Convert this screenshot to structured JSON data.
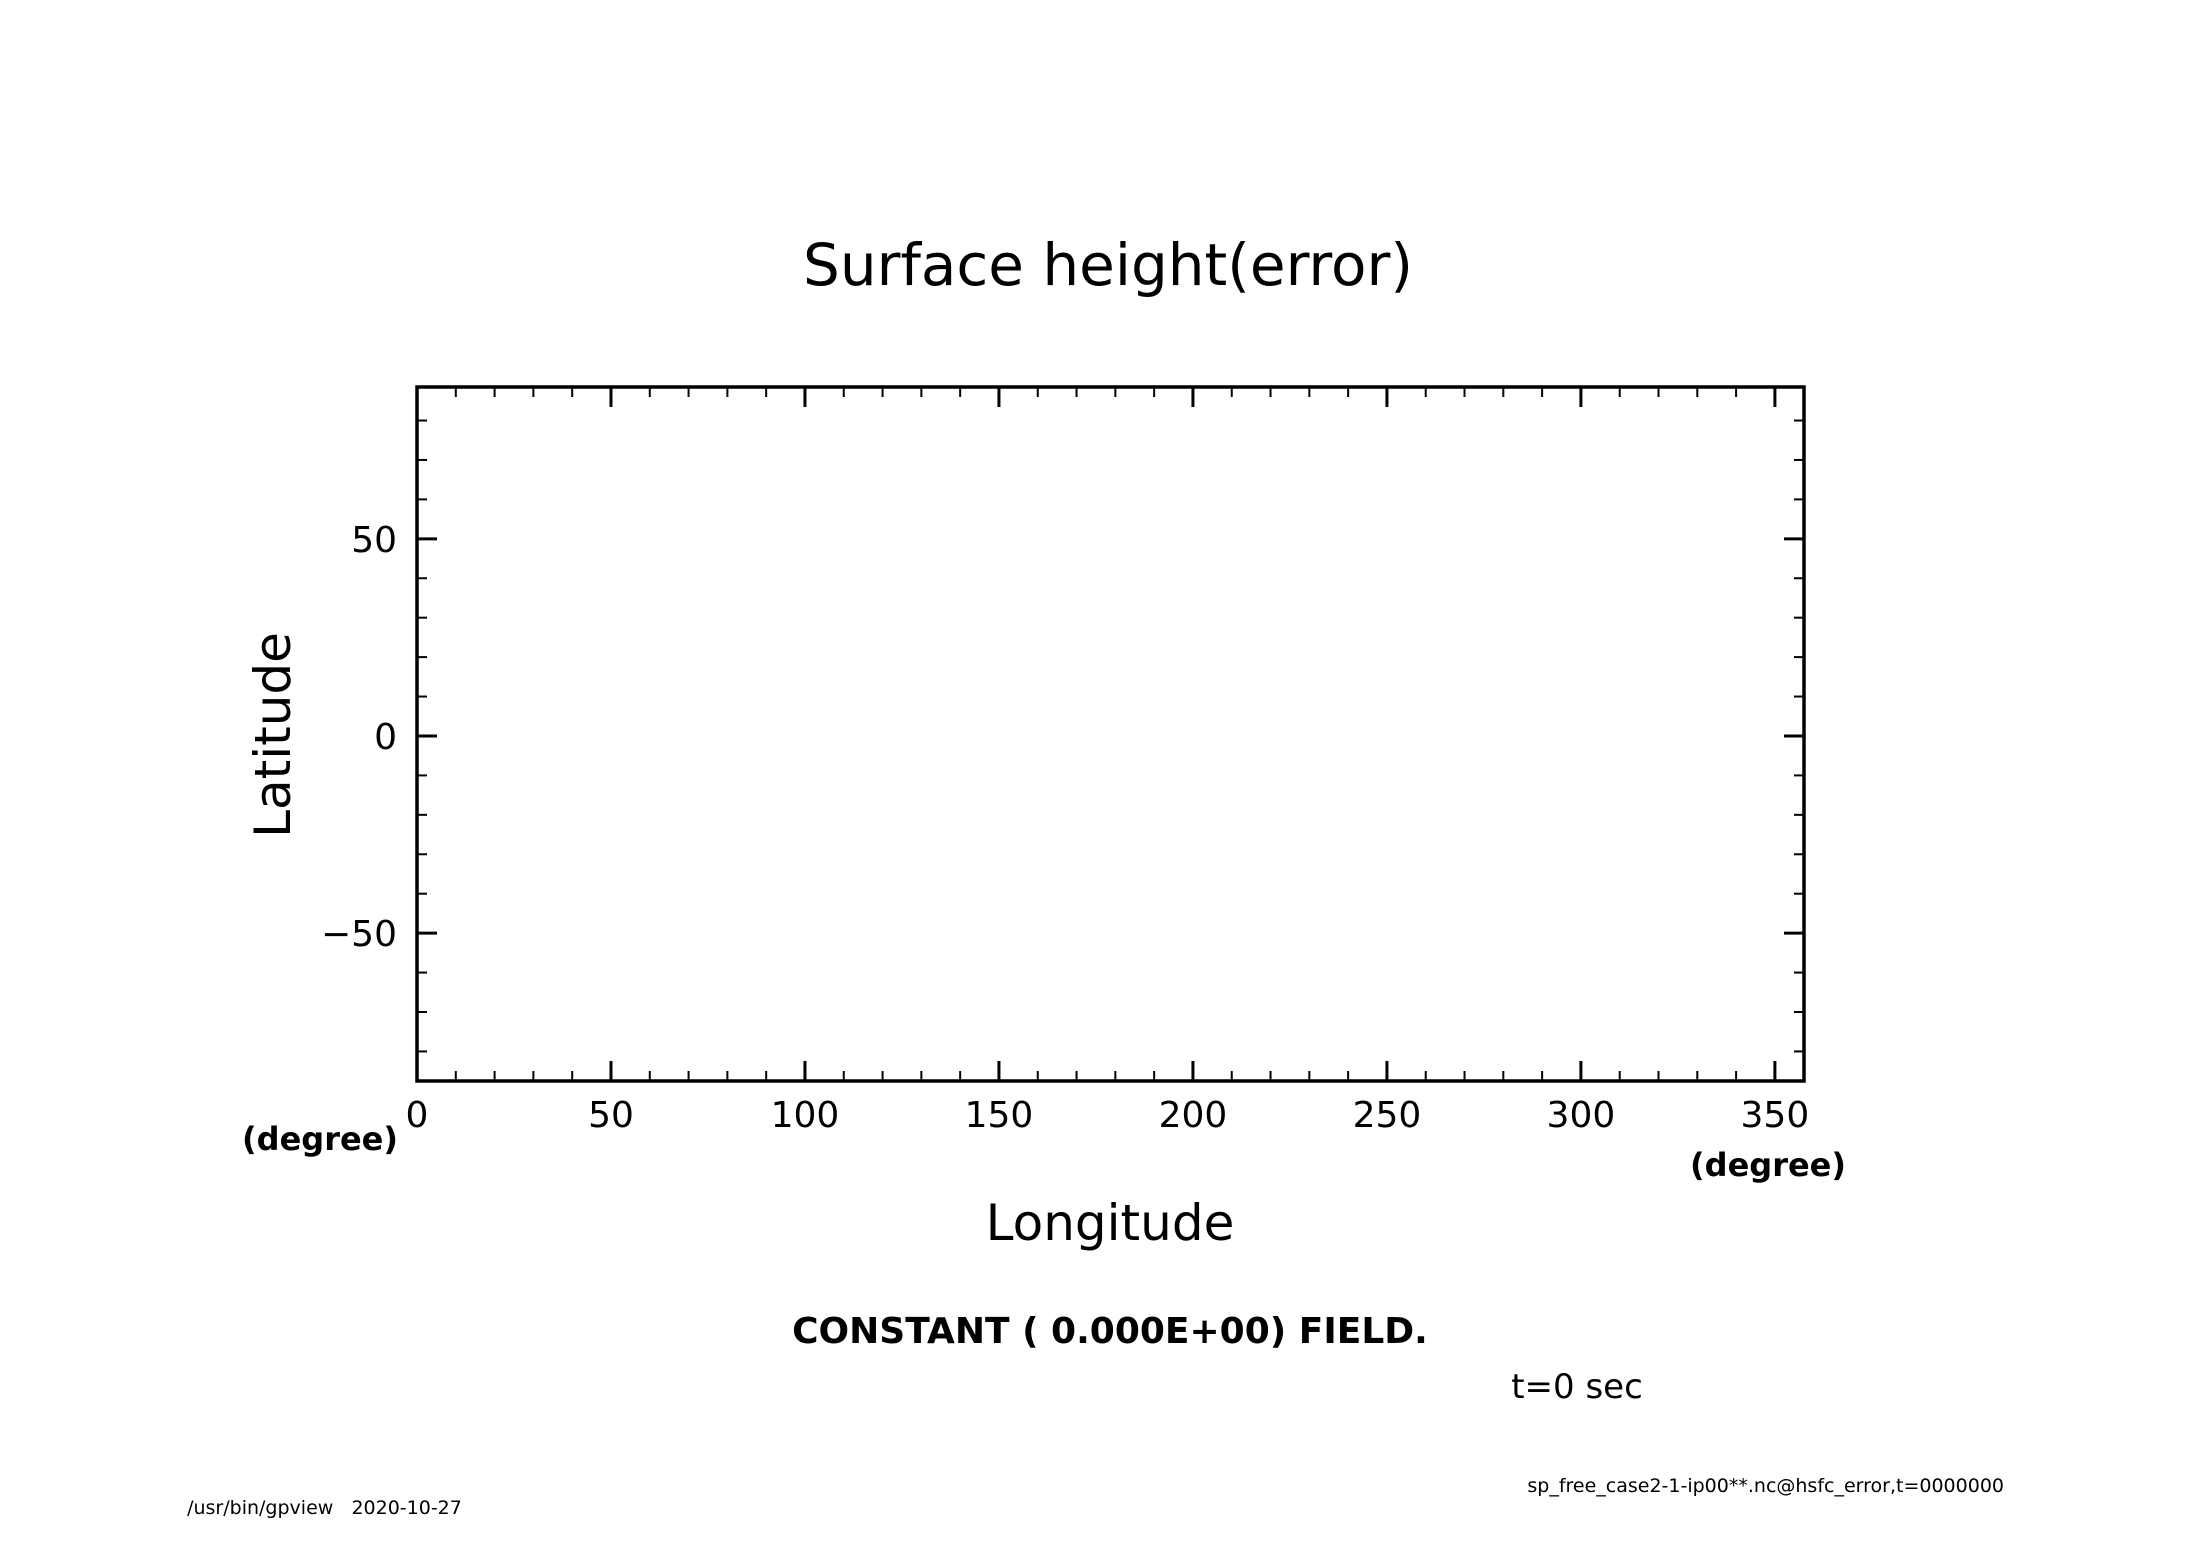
{
  "chart_data": {
    "type": "heatmap",
    "title": "Surface height(error)",
    "xlabel": "Longitude",
    "ylabel": "Latitude",
    "x_unit": "(degree)",
    "y_unit": "(degree)",
    "xlim": [
      0,
      357.5
    ],
    "ylim": [
      -87.5,
      88.5
    ],
    "x_major_ticks": [
      0,
      50,
      100,
      150,
      200,
      250,
      300,
      350
    ],
    "x_minor_step": 10,
    "y_major_ticks": [
      -50,
      0,
      50
    ],
    "y_minor_step": 10,
    "grid": false,
    "field_note": "CONSTANT ( 0.000E+00) FIELD.",
    "time_label": "t=0 sec",
    "values": []
  },
  "footer": {
    "left_program": "/usr/bin/gpview",
    "left_date": "2020-10-27",
    "right_source": "sp_free_case2-1-ip00**.nc@hsfc_error,t=0000000"
  },
  "colors": {
    "axis": "#000000",
    "background": "#ffffff"
  }
}
